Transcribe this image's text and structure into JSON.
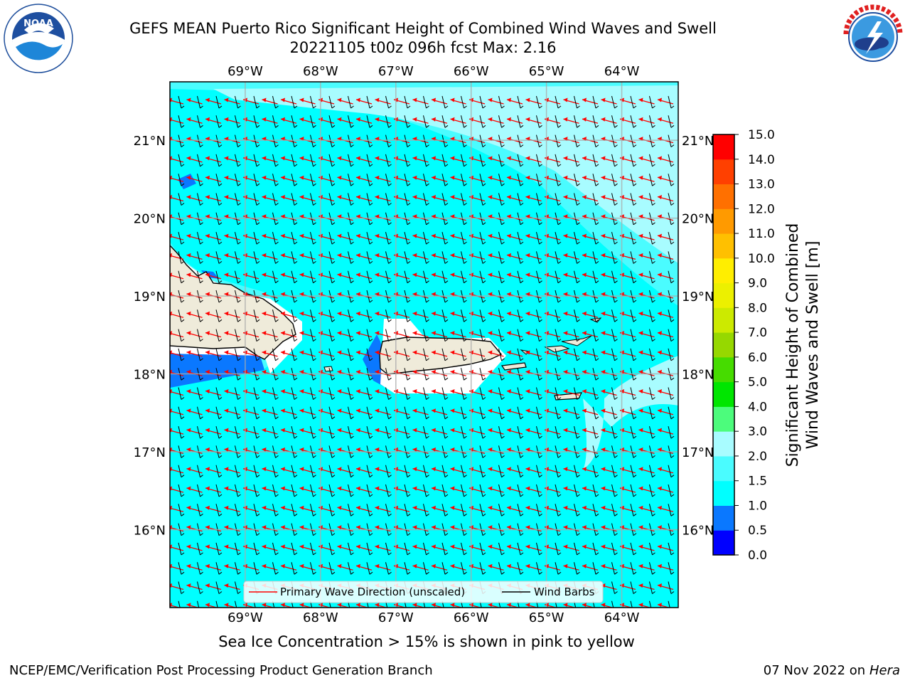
{
  "header": {
    "title_line1": "GEFS MEAN Puerto Rico Significant Height of Combined Wind Waves and Swell",
    "title_line2": "20221105 t00z 096h fcst   Max: 2.16"
  },
  "logos": {
    "left": {
      "text": "NOAA",
      "ring_text": "NATIONAL OCEANIC AND ATMOSPHERIC ADMINISTRATION · U.S. DEPARTMENT OF COMMERCE"
    },
    "right": {
      "ring_text": "NATIONAL WEATHER SERVICE"
    }
  },
  "map": {
    "lon_ticks": [
      "69°W",
      "68°W",
      "67°W",
      "66°W",
      "65°W",
      "64°W"
    ],
    "lat_ticks": [
      "21°N",
      "20°N",
      "19°N",
      "18°N",
      "17°N",
      "16°N"
    ],
    "lon_values": [
      -69,
      -68,
      -67,
      -66,
      -65,
      -64
    ],
    "lat_values": [
      21,
      20,
      19,
      18,
      17,
      16
    ],
    "extent": {
      "lon_min": -70.0,
      "lon_max": -63.25,
      "lat_min": 15.0,
      "lat_max": 21.75
    },
    "primary_direction_color": "#ff0000",
    "barb_color": "#000000",
    "legend": {
      "primary": "Primary Wave Direction (unscaled)",
      "barbs": "Wind Barbs"
    }
  },
  "colorbar": {
    "label_line1": "Significant Height of Combined",
    "label_line2": "Wind Waves and Swell [m]",
    "ticks": [
      "0.0",
      "0.5",
      "1.0",
      "1.5",
      "2.0",
      "3.0",
      "4.0",
      "5.0",
      "6.0",
      "7.0",
      "8.0",
      "9.0",
      "10.0",
      "11.0",
      "12.0",
      "13.0",
      "14.0",
      "15.0"
    ],
    "colors": [
      "#0000ff",
      "#0a78ff",
      "#00ffff",
      "#4afcff",
      "#a8fcff",
      "#4cfc7c",
      "#00e600",
      "#46dc00",
      "#96d800",
      "#ccea00",
      "#ecf000",
      "#ffee00",
      "#ffc000",
      "#ff9a00",
      "#ff7000",
      "#ff4000",
      "#ff0000"
    ]
  },
  "footer": {
    "note": "Sea Ice Concentration > 15% is shown in pink to yellow",
    "left": "NCEP/EMC/Verification Post Processing Product Generation Branch",
    "date": "07 Nov 2022 on",
    "machine": "Hera"
  }
}
